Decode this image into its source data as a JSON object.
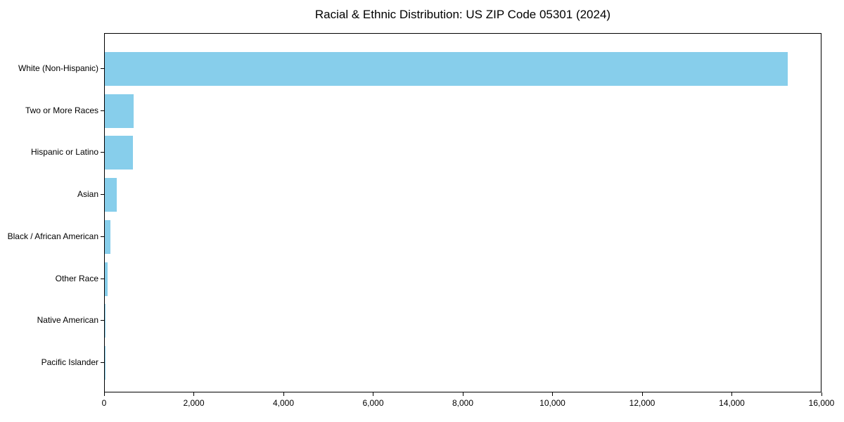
{
  "chart_data": {
    "type": "bar",
    "orientation": "horizontal",
    "title": "Racial & Ethnic Distribution: US ZIP Code 05301 (2024)",
    "categories": [
      "White (Non-Hispanic)",
      "Two or More Races",
      "Hispanic or Latino",
      "Asian",
      "Black / African American",
      "Other Race",
      "Native American",
      "Pacific Islander"
    ],
    "values": [
      15230,
      650,
      630,
      260,
      125,
      70,
      15,
      5
    ],
    "xlabel": "",
    "ylabel": "",
    "xlim": [
      0,
      16000
    ],
    "x_ticks": [
      0,
      2000,
      4000,
      6000,
      8000,
      10000,
      12000,
      14000,
      16000
    ],
    "x_tick_labels": [
      "0",
      "2,000",
      "4,000",
      "6,000",
      "8,000",
      "10,000",
      "12,000",
      "14,000",
      "16,000"
    ],
    "grid": false,
    "legend_position": "none",
    "bar_color": "#87CEEB",
    "axis_color": "#000000",
    "text_color": "#000000",
    "background_color": "#FFFFFF"
  }
}
